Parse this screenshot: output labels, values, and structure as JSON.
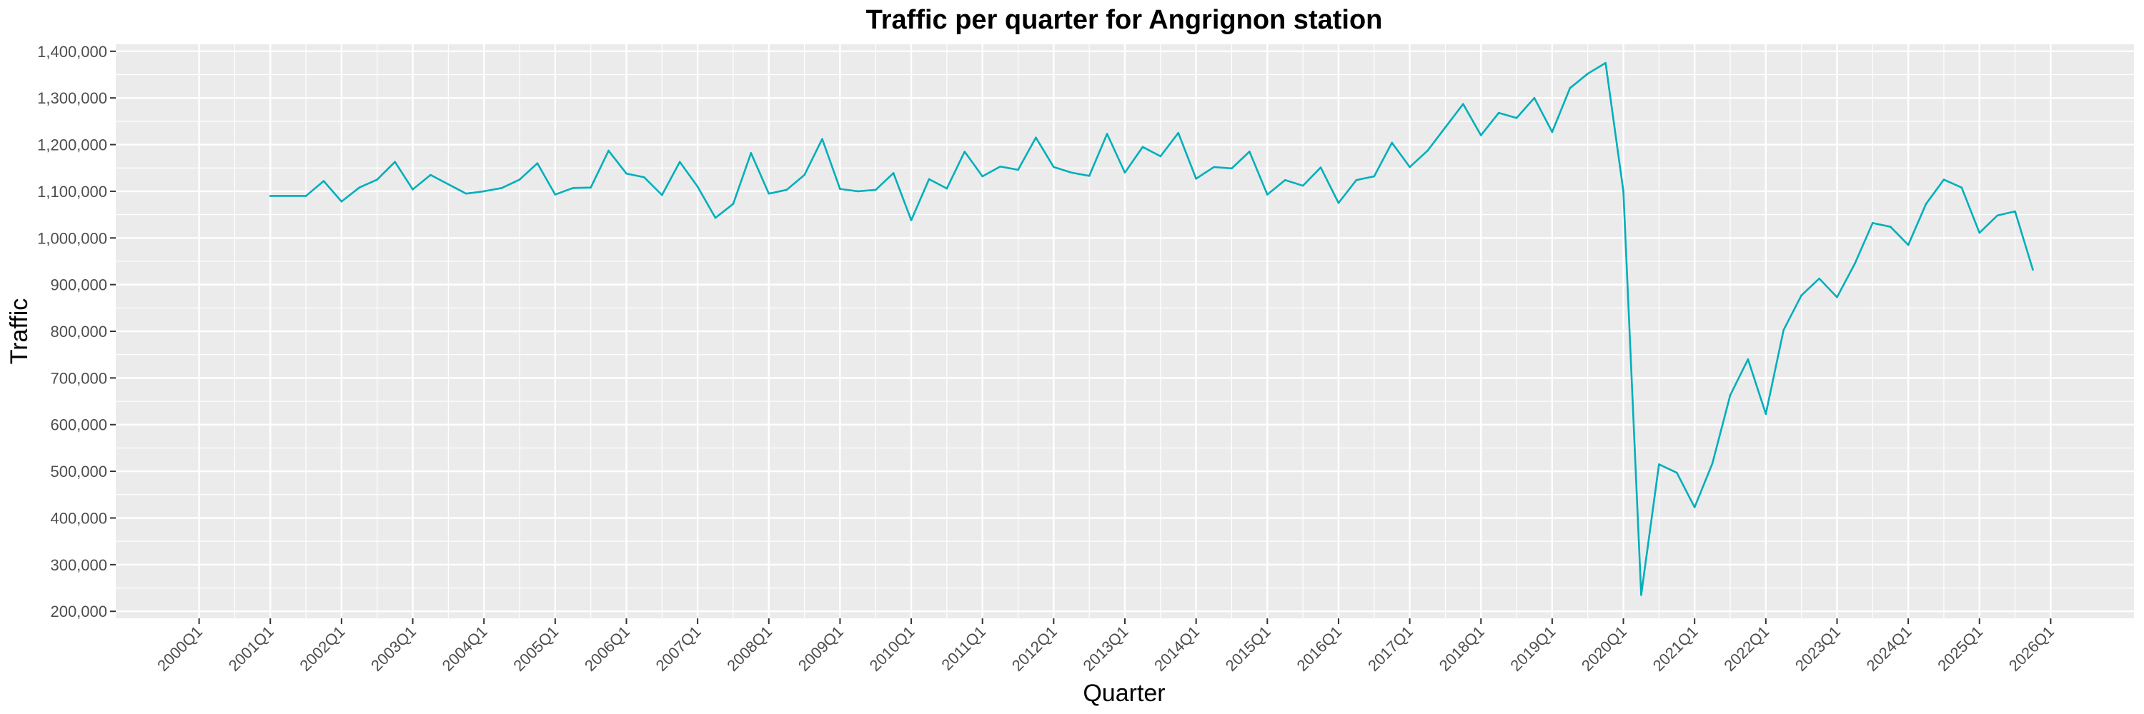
{
  "chart_data": {
    "type": "line",
    "title": "Traffic per quarter for Angrignon station",
    "xlabel": "Quarter",
    "ylabel": "Traffic",
    "ylim": [
      185000,
      1415000
    ],
    "xlim": [
      "2000Q1",
      "2026Q1"
    ],
    "grid": true,
    "legend": "none",
    "colors": {
      "line": "#00AFBB",
      "panel": "#EBEBEB",
      "grid": "#FFFFFF"
    },
    "x_tick_labels": [
      "2000Q1",
      "2001Q1",
      "2002Q1",
      "2003Q1",
      "2004Q1",
      "2005Q1",
      "2006Q1",
      "2007Q1",
      "2008Q1",
      "2009Q1",
      "2010Q1",
      "2011Q1",
      "2012Q1",
      "2013Q1",
      "2014Q1",
      "2015Q1",
      "2016Q1",
      "2017Q1",
      "2018Q1",
      "2019Q1",
      "2020Q1",
      "2021Q1",
      "2022Q1",
      "2023Q1",
      "2024Q1",
      "2025Q1",
      "2026Q1"
    ],
    "y_tick_values": [
      200000,
      300000,
      400000,
      500000,
      600000,
      700000,
      800000,
      900000,
      1000000,
      1100000,
      1200000,
      1300000,
      1400000
    ],
    "y_tick_labels": [
      "200,000",
      "300,000",
      "400,000",
      "500,000",
      "600,000",
      "700,000",
      "800,000",
      "900,000",
      "1,000,000",
      "1,100,000",
      "1,200,000",
      "1,300,000",
      "1,400,000"
    ],
    "series": [
      {
        "x": [
          "2001Q1",
          "2001Q2",
          "2001Q3",
          "2001Q4",
          "2002Q1",
          "2002Q2",
          "2002Q3",
          "2002Q4",
          "2003Q1",
          "2003Q2",
          "2003Q3",
          "2003Q4",
          "2004Q1",
          "2004Q2",
          "2004Q3",
          "2004Q4",
          "2005Q1",
          "2005Q2",
          "2005Q3",
          "2005Q4",
          "2006Q1",
          "2006Q2",
          "2006Q3",
          "2006Q4",
          "2007Q1",
          "2007Q2",
          "2007Q3",
          "2007Q4",
          "2008Q1",
          "2008Q2",
          "2008Q3",
          "2008Q4",
          "2009Q1",
          "2009Q2",
          "2009Q3",
          "2009Q4",
          "2010Q1",
          "2010Q2",
          "2010Q3",
          "2010Q4",
          "2011Q1",
          "2011Q2",
          "2011Q3",
          "2011Q4",
          "2012Q1",
          "2012Q2",
          "2012Q3",
          "2012Q4",
          "2013Q1",
          "2013Q2",
          "2013Q3",
          "2013Q4",
          "2014Q1",
          "2014Q2",
          "2014Q3",
          "2014Q4",
          "2015Q1",
          "2015Q2",
          "2015Q3",
          "2015Q4",
          "2016Q1",
          "2016Q2",
          "2016Q3",
          "2016Q4",
          "2017Q1",
          "2017Q2",
          "2017Q3",
          "2017Q4",
          "2018Q1",
          "2018Q2",
          "2018Q3",
          "2018Q4",
          "2019Q1",
          "2019Q2",
          "2019Q3",
          "2019Q4",
          "2020Q1",
          "2020Q2",
          "2020Q3",
          "2020Q4",
          "2021Q1",
          "2021Q2",
          "2021Q3",
          "2021Q4",
          "2022Q1",
          "2022Q2",
          "2022Q3",
          "2022Q4",
          "2023Q1",
          "2023Q2",
          "2023Q3",
          "2023Q4",
          "2024Q1",
          "2024Q2",
          "2024Q3",
          "2024Q4",
          "2025Q1",
          "2025Q2",
          "2025Q3",
          "2025Q4"
        ],
        "values": [
          1090000,
          1090000,
          1090000,
          1122000,
          1078000,
          1108000,
          1125000,
          1163000,
          1104000,
          1135000,
          1115000,
          1095000,
          1100000,
          1107000,
          1125000,
          1160000,
          1093000,
          1107000,
          1108000,
          1187000,
          1138000,
          1130000,
          1092000,
          1163000,
          1110000,
          1043000,
          1073000,
          1182000,
          1095000,
          1103000,
          1135000,
          1212000,
          1105000,
          1100000,
          1103000,
          1139000,
          1038000,
          1126000,
          1106000,
          1185000,
          1132000,
          1153000,
          1146000,
          1215000,
          1152000,
          1140000,
          1133000,
          1223000,
          1140000,
          1195000,
          1175000,
          1225000,
          1127000,
          1152000,
          1149000,
          1185000,
          1093000,
          1124000,
          1112000,
          1151000,
          1075000,
          1124000,
          1132000,
          1204000,
          1152000,
          1187000,
          1237000,
          1287000,
          1220000,
          1268000,
          1257000,
          1300000,
          1227000,
          1321000,
          1352000,
          1375000,
          1100000,
          235000,
          515000,
          497000,
          423000,
          517000,
          663000,
          740000,
          623000,
          803000,
          877000,
          913000,
          873000,
          945000,
          1032000,
          1024000,
          985000,
          1073000,
          1125000,
          1108000,
          1011000,
          1048000,
          1057000,
          932000
        ]
      }
    ]
  }
}
